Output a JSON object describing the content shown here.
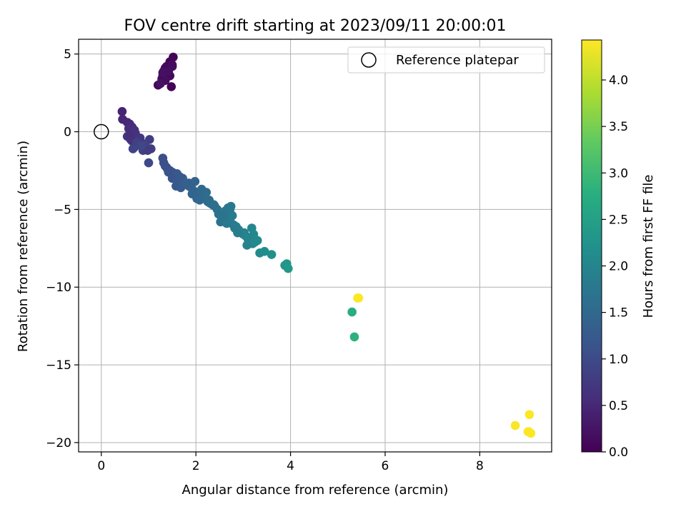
{
  "chart_data": {
    "type": "scatter",
    "title": "FOV centre drift starting at 2023/09/11 20:00:01",
    "xlabel": "Angular distance from reference (arcmin)",
    "ylabel": "Rotation from reference (arcmin)",
    "xlim": [
      -0.48,
      9.52
    ],
    "ylim": [
      -20.6,
      5.95
    ],
    "xticks": [
      0,
      2,
      4,
      6,
      8
    ],
    "yticks": [
      5,
      0,
      -5,
      -10,
      -15,
      -20
    ],
    "xtick_labels": [
      "0",
      "2",
      "4",
      "6",
      "8"
    ],
    "ytick_labels": [
      "5",
      "0",
      "−5",
      "−10",
      "−15",
      "−20"
    ],
    "grid": true,
    "legend": {
      "position": "top-right",
      "entries": [
        {
          "label": "Reference platepar",
          "marker": "open-circle"
        }
      ]
    },
    "reference_point": {
      "x": 0,
      "y": 0
    },
    "colorbar": {
      "label": "Hours from first FF file",
      "colormap": "viridis",
      "range": [
        0.0,
        4.43
      ],
      "ticks": [
        0.0,
        0.5,
        1.0,
        1.5,
        2.0,
        2.5,
        3.0,
        3.5,
        4.0
      ],
      "tick_labels": [
        "0.0",
        "0.5",
        "1.0",
        "1.5",
        "2.0",
        "2.5",
        "3.0",
        "3.5",
        "4.0"
      ]
    },
    "series": [
      {
        "x": [
          1.52,
          1.45,
          1.38,
          1.32,
          1.3,
          1.35,
          1.42,
          1.5,
          1.28,
          1.4,
          1.48,
          1.33,
          1.2,
          1.38,
          1.45,
          1.5,
          1.35,
          1.42,
          1.3,
          1.25,
          0.44,
          0.45,
          0.55,
          0.6,
          0.65,
          0.58,
          0.7,
          0.72,
          0.68,
          0.75,
          0.55,
          0.62,
          0.8,
          0.85,
          0.9,
          0.95,
          1.02,
          1.05,
          0.78,
          0.88,
          0.92,
          0.6,
          0.65,
          0.7,
          0.82,
          0.98,
          0.75,
          0.67,
          0.85,
          1.0,
          1.3,
          1.32,
          1.35,
          1.4,
          1.45,
          1.5,
          1.55,
          1.6,
          1.65,
          1.7,
          1.75,
          1.8,
          1.85,
          1.9,
          1.95,
          2.0,
          2.05,
          2.1,
          2.15,
          2.2,
          2.25,
          2.3,
          2.35,
          1.5,
          1.62,
          1.72,
          1.85,
          1.98,
          2.02,
          2.12,
          2.22,
          2.28,
          1.38,
          1.58,
          1.68,
          1.78,
          1.92,
          2.08,
          1.42,
          1.66,
          2.4,
          2.45,
          2.5,
          2.55,
          2.6,
          2.65,
          2.7,
          2.75,
          2.8,
          2.85,
          2.9,
          2.95,
          3.0,
          3.05,
          3.1,
          3.15,
          3.2,
          2.48,
          2.58,
          2.68,
          2.72,
          2.82,
          2.92,
          3.02,
          3.12,
          3.18,
          3.22,
          2.38,
          2.52,
          2.62,
          2.74,
          2.88,
          3.08,
          3.25,
          3.3,
          3.35,
          3.45,
          3.6,
          3.88,
          3.92,
          3.95,
          2.55,
          2.65,
          2.77,
          5.3,
          5.35,
          5.42,
          5.44,
          8.75,
          9.02,
          9.05,
          9.08,
          9.04
        ],
        "y": [
          4.8,
          4.5,
          4.2,
          3.9,
          3.6,
          4.1,
          3.8,
          4.3,
          3.4,
          3.7,
          2.9,
          3.5,
          3.0,
          4.0,
          3.6,
          4.2,
          3.3,
          3.9,
          3.8,
          3.1,
          1.3,
          0.8,
          0.6,
          0.5,
          0.3,
          0.2,
          0.1,
          -0.1,
          -0.2,
          -0.4,
          -0.3,
          -0.5,
          -0.6,
          -0.7,
          -0.9,
          -1.0,
          -0.5,
          -1.1,
          -0.8,
          -1.2,
          -0.8,
          -0.3,
          -0.6,
          -1.0,
          -0.4,
          -1.2,
          -0.7,
          -1.1,
          -0.9,
          -2.0,
          -1.7,
          -2.0,
          -2.2,
          -2.4,
          -2.5,
          -2.6,
          -2.8,
          -2.7,
          -2.9,
          -3.1,
          -3.3,
          -3.4,
          -3.5,
          -3.6,
          -3.8,
          -3.9,
          -4.0,
          -4.1,
          -4.2,
          -4.3,
          -4.5,
          -4.6,
          -4.7,
          -3.0,
          -3.2,
          -3.0,
          -3.3,
          -3.2,
          -4.3,
          -3.7,
          -3.9,
          -4.4,
          -2.3,
          -3.5,
          -3.6,
          -3.3,
          -4.0,
          -4.4,
          -2.6,
          -2.9,
          -4.8,
          -5.0,
          -5.2,
          -5.4,
          -5.5,
          -5.7,
          -5.8,
          -5.9,
          -6.0,
          -6.1,
          -6.3,
          -6.5,
          -6.6,
          -6.7,
          -6.9,
          -7.0,
          -7.2,
          -5.3,
          -5.6,
          -4.9,
          -5.0,
          -6.2,
          -6.4,
          -6.5,
          -6.8,
          -6.2,
          -6.6,
          -4.7,
          -5.8,
          -5.1,
          -4.8,
          -6.5,
          -7.3,
          -7.1,
          -7.0,
          -7.8,
          -7.7,
          -7.9,
          -8.6,
          -8.5,
          -8.8,
          -5.5,
          -5.9,
          -5.4,
          -11.6,
          -13.2,
          -10.7,
          -10.7,
          -18.9,
          -19.3,
          -18.2,
          -19.4,
          -19.3
        ],
        "hours": [
          0.02,
          0.04,
          0.06,
          0.08,
          0.1,
          0.12,
          0.14,
          0.16,
          0.18,
          0.2,
          0.03,
          0.05,
          0.07,
          0.09,
          0.11,
          0.13,
          0.15,
          0.17,
          0.19,
          0.21,
          0.45,
          0.48,
          0.5,
          0.52,
          0.55,
          0.57,
          0.6,
          0.62,
          0.64,
          0.66,
          0.68,
          0.7,
          0.72,
          0.74,
          0.76,
          0.78,
          0.8,
          0.82,
          0.84,
          0.86,
          0.88,
          0.58,
          0.63,
          0.67,
          0.73,
          0.79,
          0.85,
          0.9,
          0.94,
          0.98,
          1.05,
          1.08,
          1.1,
          1.12,
          1.15,
          1.18,
          1.2,
          1.22,
          1.25,
          1.28,
          1.3,
          1.32,
          1.35,
          1.38,
          1.4,
          1.42,
          1.45,
          1.48,
          1.5,
          1.52,
          1.55,
          1.58,
          1.6,
          1.14,
          1.24,
          1.3,
          1.36,
          1.4,
          1.46,
          1.5,
          1.54,
          1.58,
          1.08,
          1.2,
          1.26,
          1.34,
          1.42,
          1.5,
          1.11,
          1.23,
          1.62,
          1.65,
          1.68,
          1.7,
          1.72,
          1.75,
          1.78,
          1.8,
          1.82,
          1.85,
          1.88,
          1.9,
          1.92,
          1.95,
          1.98,
          2.0,
          2.02,
          1.66,
          1.71,
          1.74,
          1.77,
          1.84,
          1.89,
          1.94,
          1.99,
          2.01,
          2.04,
          1.61,
          1.67,
          1.73,
          1.79,
          1.86,
          1.96,
          2.05,
          2.08,
          2.1,
          2.14,
          2.18,
          2.28,
          2.32,
          2.35,
          1.69,
          1.76,
          1.81,
          2.75,
          2.8,
          4.4,
          4.43,
          4.4,
          4.41,
          4.42,
          4.43,
          4.42
        ]
      }
    ]
  }
}
